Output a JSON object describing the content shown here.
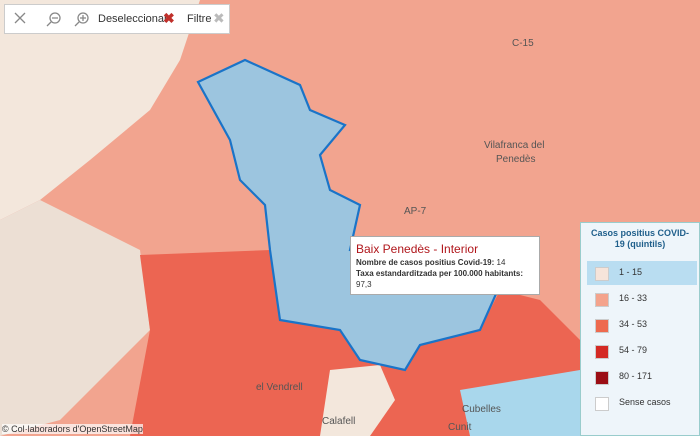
{
  "toolbar": {
    "deselect": "Deseleccionar",
    "filter": "Filtre"
  },
  "tooltip": {
    "title": "Baix Penedès - Interior",
    "lines": [
      {
        "label": "Nombre de casos positius Covid-19:",
        "value": "14"
      },
      {
        "label": "Taxa estandarditzada per 100.000 habitants:",
        "value": "97,3"
      }
    ]
  },
  "legend": {
    "title": "Casos positius COVID-19 (quintils)",
    "selected": 0,
    "items": [
      {
        "label": "1 - 15",
        "color": "#f6e4da"
      },
      {
        "label": "16 - 33",
        "color": "#f4a38c"
      },
      {
        "label": "34 - 53",
        "color": "#ee6a4f"
      },
      {
        "label": "54 - 79",
        "color": "#d42a24"
      },
      {
        "label": "80 - 171",
        "color": "#9b0d14"
      },
      {
        "label": "Sense casos",
        "color": "#ffffff"
      }
    ]
  },
  "map_labels": [
    "C-15",
    "Vilafranca del",
    "Penedès",
    "AP-7",
    "el Vendrell",
    "Calafell",
    "Cunit",
    "Cubelles"
  ],
  "attribution": "© Col·laboradors d'OpenStreetMap"
}
